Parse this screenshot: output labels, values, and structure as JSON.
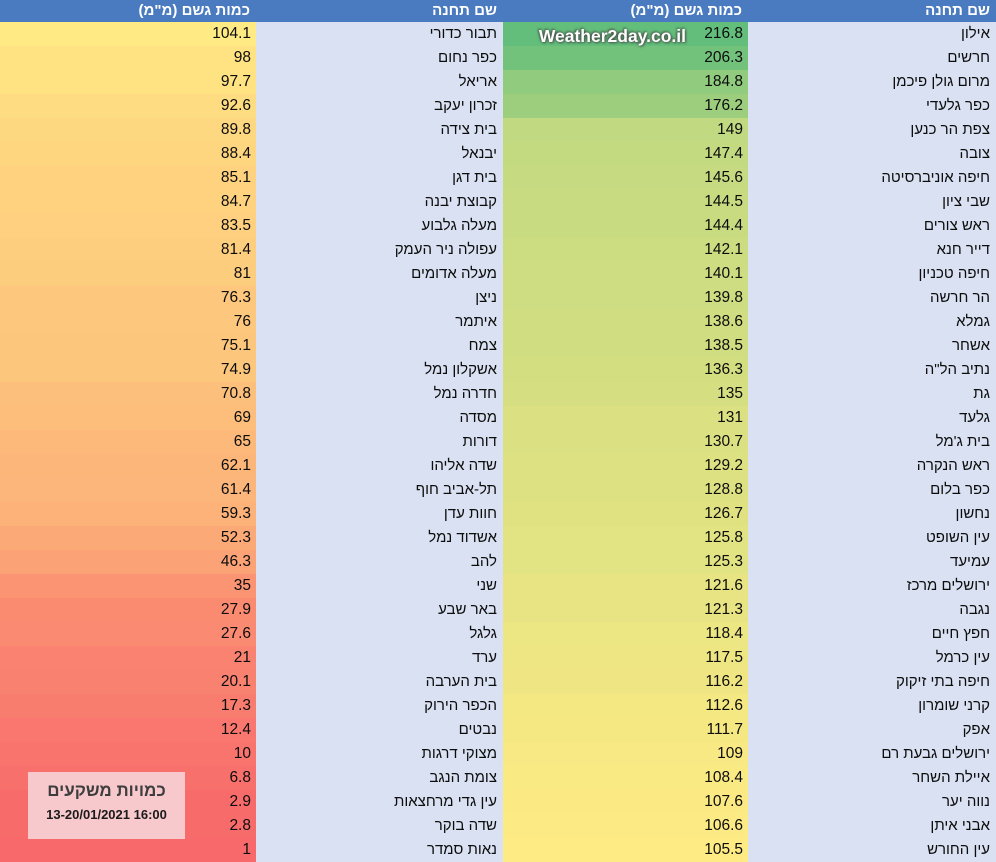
{
  "page": {
    "watermark": "Weather2day.co.il"
  },
  "info_box": {
    "title": "כמויות משקעים",
    "date": "13-20/01/2021 16:00",
    "bg_color": "#F7C9CD"
  },
  "chart_data": {
    "type": "table",
    "title": "כמויות משקעים",
    "timestamp": "13-20/01/2021 16:00",
    "columns": {
      "station": "שם תחנה",
      "amount": "כמות גשם (מ\"מ)"
    },
    "header_bg": "#4A7ABF",
    "station_bg": "#D9E1F2",
    "color_scale": {
      "min_value": 1,
      "mid_value": 104.8,
      "max_value": 216.8,
      "min_color": "#F8696B",
      "mid_color": "#FFEB84",
      "max_color": "#63BE7B"
    },
    "right_rows": [
      {
        "station": "אילון",
        "amount": 216.8
      },
      {
        "station": "חרשים",
        "amount": 206.3
      },
      {
        "station": "מרום גולן פיכמן",
        "amount": 184.8
      },
      {
        "station": "כפר גלעדי",
        "amount": 176.2
      },
      {
        "station": "צפת הר כנען",
        "amount": 149
      },
      {
        "station": "צובה",
        "amount": 147.4
      },
      {
        "station": "חיפה אוניברסיטה",
        "amount": 145.6
      },
      {
        "station": "שבי ציון",
        "amount": 144.5
      },
      {
        "station": "ראש צורים",
        "amount": 144.4
      },
      {
        "station": "דייר חנא",
        "amount": 142.1
      },
      {
        "station": "חיפה טכניון",
        "amount": 140.1
      },
      {
        "station": "הר חרשה",
        "amount": 139.8
      },
      {
        "station": "גמלא",
        "amount": 138.6
      },
      {
        "station": "אשחר",
        "amount": 138.5
      },
      {
        "station": "נתיב הל\"ה",
        "amount": 136.3
      },
      {
        "station": "גת",
        "amount": 135
      },
      {
        "station": "גלעד",
        "amount": 131
      },
      {
        "station": "בית ג'מל",
        "amount": 130.7
      },
      {
        "station": "ראש הנקרה",
        "amount": 129.2
      },
      {
        "station": "כפר בלום",
        "amount": 128.8
      },
      {
        "station": "נחשון",
        "amount": 126.7
      },
      {
        "station": "עין השופט",
        "amount": 125.8
      },
      {
        "station": "עמיעד",
        "amount": 125.3
      },
      {
        "station": "ירושלים מרכז",
        "amount": 121.6
      },
      {
        "station": "נגבה",
        "amount": 121.3
      },
      {
        "station": "חפץ חיים",
        "amount": 118.4
      },
      {
        "station": "עין כרמל",
        "amount": 117.5
      },
      {
        "station": "חיפה בתי זיקוק",
        "amount": 116.2
      },
      {
        "station": "קרני שומרון",
        "amount": 112.6
      },
      {
        "station": "אפק",
        "amount": 111.7
      },
      {
        "station": "ירושלים גבעת רם",
        "amount": 109
      },
      {
        "station": "איילת השחר",
        "amount": 108.4
      },
      {
        "station": "נווה יער",
        "amount": 107.6
      },
      {
        "station": "אבני איתן",
        "amount": 106.6
      },
      {
        "station": "עין החורש",
        "amount": 105.5
      }
    ],
    "left_rows": [
      {
        "station": "תבור כדורי",
        "amount": 104.1
      },
      {
        "station": "כפר נחום",
        "amount": 98
      },
      {
        "station": "אריאל",
        "amount": 97.7
      },
      {
        "station": "זכרון יעקב",
        "amount": 92.6
      },
      {
        "station": "בית צידה",
        "amount": 89.8
      },
      {
        "station": "יבנאל",
        "amount": 88.4
      },
      {
        "station": "בית דגן",
        "amount": 85.1
      },
      {
        "station": "קבוצת יבנה",
        "amount": 84.7
      },
      {
        "station": "מעלה גלבוע",
        "amount": 83.5
      },
      {
        "station": "עפולה ניר העמק",
        "amount": 81.4
      },
      {
        "station": "מעלה אדומים",
        "amount": 81
      },
      {
        "station": "ניצן",
        "amount": 76.3
      },
      {
        "station": "איתמר",
        "amount": 76
      },
      {
        "station": "צמח",
        "amount": 75.1
      },
      {
        "station": "אשקלון נמל",
        "amount": 74.9
      },
      {
        "station": "חדרה נמל",
        "amount": 70.8
      },
      {
        "station": "מסדה",
        "amount": 69
      },
      {
        "station": "דורות",
        "amount": 65
      },
      {
        "station": "שדה אליהו",
        "amount": 62.1
      },
      {
        "station": "תל-אביב חוף",
        "amount": 61.4
      },
      {
        "station": "חוות עדן",
        "amount": 59.3
      },
      {
        "station": "אשדוד נמל",
        "amount": 52.3
      },
      {
        "station": "להב",
        "amount": 46.3
      },
      {
        "station": "שני",
        "amount": 35
      },
      {
        "station": "באר שבע",
        "amount": 27.9
      },
      {
        "station": "גלגל",
        "amount": 27.6
      },
      {
        "station": "ערד",
        "amount": 21
      },
      {
        "station": "בית הערבה",
        "amount": 20.1
      },
      {
        "station": "הכפר הירוק",
        "amount": 17.3
      },
      {
        "station": "נבטים",
        "amount": 12.4
      },
      {
        "station": "מצוקי דרגות",
        "amount": 10
      },
      {
        "station": "צומת הנגב",
        "amount": 6.8
      },
      {
        "station": "עין גדי מרחצאות",
        "amount": 2.9
      },
      {
        "station": "שדה בוקר",
        "amount": 2.8
      },
      {
        "station": "נאות סמדר",
        "amount": 1
      }
    ]
  }
}
